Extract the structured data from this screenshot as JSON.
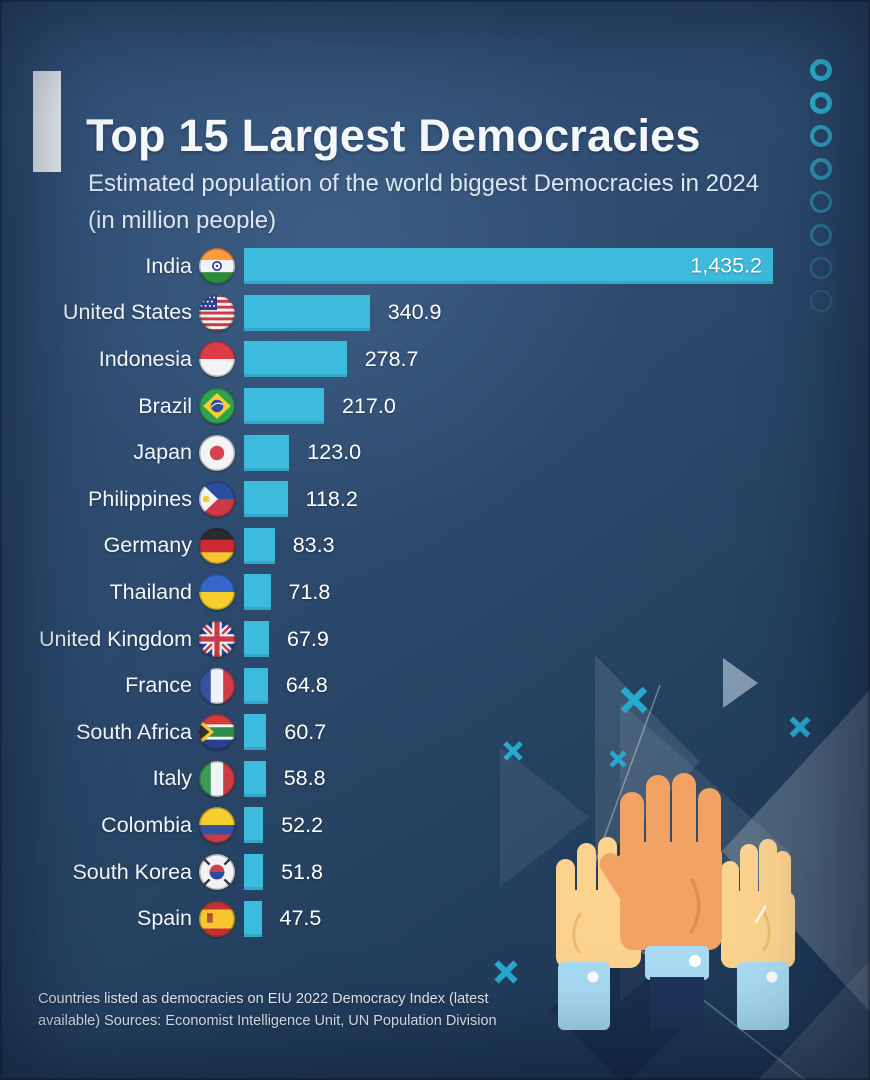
{
  "header": {
    "title": "Top 15 Largest Democracies",
    "subtitle_line1": "Estimated population of the world biggest Democracies in 2024",
    "subtitle_line2": "(in million people)"
  },
  "chart_data": {
    "type": "bar",
    "orientation": "horizontal",
    "title": "Top 15 Largest Democracies",
    "subtitle": "Estimated population of the world biggest Democracies in 2024 (in million people)",
    "unit": "million people",
    "xlim": [
      0,
      1435.2
    ],
    "bar_color": "#3CBBDD",
    "value_label_color": "#FFFFFF",
    "categories": [
      "India",
      "United States",
      "Indonesia",
      "Brazil",
      "Japan",
      "Philippines",
      "Germany",
      "Thailand",
      "United Kingdom",
      "France",
      "South Africa",
      "Italy",
      "Colombia",
      "South Korea",
      "Spain"
    ],
    "values": [
      1435.2,
      340.9,
      278.7,
      217.0,
      123.0,
      118.2,
      83.3,
      71.8,
      67.9,
      64.8,
      60.7,
      58.8,
      52.2,
      51.8,
      47.5
    ],
    "countries": [
      {
        "name": "India",
        "value": 1435.2,
        "label": "1,435.2",
        "flag": "india",
        "value_inside": true
      },
      {
        "name": "United States",
        "value": 340.9,
        "label": "340.9",
        "flag": "united-states",
        "value_inside": false
      },
      {
        "name": "Indonesia",
        "value": 278.7,
        "label": "278.7",
        "flag": "indonesia",
        "value_inside": false
      },
      {
        "name": "Brazil",
        "value": 217.0,
        "label": "217.0",
        "flag": "brazil",
        "value_inside": false
      },
      {
        "name": "Japan",
        "value": 123.0,
        "label": "123.0",
        "flag": "japan",
        "value_inside": false
      },
      {
        "name": "Philippines",
        "value": 118.2,
        "label": "118.2",
        "flag": "philippines",
        "value_inside": false
      },
      {
        "name": "Germany",
        "value": 83.3,
        "label": "83.3",
        "flag": "germany",
        "value_inside": false
      },
      {
        "name": "Thailand",
        "value": 71.8,
        "label": "71.8",
        "flag": "ukraine",
        "value_inside": false
      },
      {
        "name": "United Kingdom",
        "value": 67.9,
        "label": "67.9",
        "flag": "united-kingdom",
        "value_inside": false
      },
      {
        "name": "France",
        "value": 64.8,
        "label": "64.8",
        "flag": "france",
        "value_inside": false
      },
      {
        "name": "South Africa",
        "value": 60.7,
        "label": "60.7",
        "flag": "south-africa",
        "value_inside": false
      },
      {
        "name": "Italy",
        "value": 58.8,
        "label": "58.8",
        "flag": "italy",
        "value_inside": false
      },
      {
        "name": "Colombia",
        "value": 52.2,
        "label": "52.2",
        "flag": "colombia",
        "value_inside": false
      },
      {
        "name": "South Korea",
        "value": 51.8,
        "label": "51.8",
        "flag": "south-korea",
        "value_inside": false
      },
      {
        "name": "Spain",
        "value": 47.5,
        "label": "47.5",
        "flag": "spain",
        "value_inside": false
      }
    ]
  },
  "footer": {
    "line1": "Countries listed as democracies on EIU 2022 Democracy Index (latest",
    "line2": "available) Sources: Economist Intelligence Unit, UN Population Division"
  },
  "colors": {
    "background": "#2D4A6E",
    "bar": "#3CBBDD",
    "x_marks": "#27A9CF",
    "rings": "#2FC0DE",
    "accent_bar": "#EAF2F6"
  }
}
